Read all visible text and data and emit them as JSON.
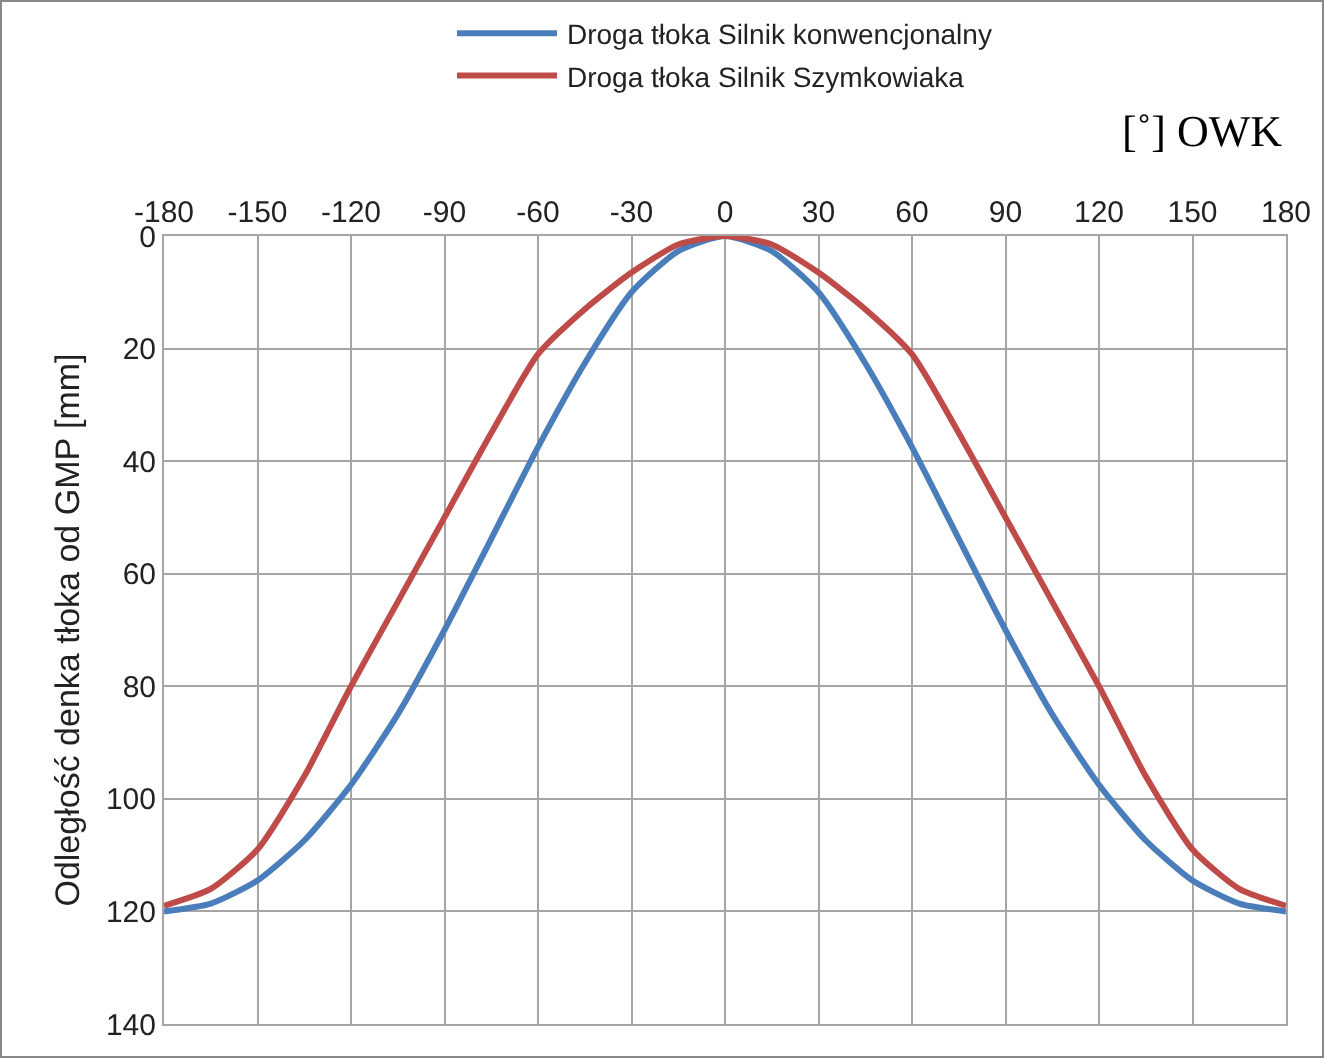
{
  "chart_data": {
    "type": "line",
    "xlabel": "[˚] OWK",
    "ylabel": "Odległość denka tłoka od GMP [mm]",
    "x": [
      -180,
      -165,
      -150,
      -135,
      -120,
      -105,
      -90,
      -75,
      -60,
      -45,
      -30,
      -15,
      0,
      15,
      30,
      45,
      60,
      75,
      90,
      105,
      120,
      135,
      150,
      165,
      180
    ],
    "series": [
      {
        "name": "Droga tłoka Silnik konwencjonalny",
        "color": "#4a7ebb",
        "values": [
          120,
          118.6,
          114.5,
          107.4,
          97.5,
          85,
          70,
          53.8,
          37.5,
          22.6,
          10,
          2.7,
          0,
          2.7,
          10,
          22.6,
          37.5,
          53.8,
          70,
          85,
          97.5,
          107.4,
          114.5,
          118.6,
          120
        ]
      },
      {
        "name": "Droga tłoka Silnik Szymkowiaka",
        "color": "#be4b48",
        "values": [
          119,
          116,
          109,
          96,
          80,
          65,
          50,
          35,
          21,
          13,
          6.5,
          1.5,
          0,
          1.5,
          6.5,
          13,
          21,
          35,
          50,
          65,
          80,
          96,
          109,
          116,
          119
        ]
      }
    ],
    "xlim": [
      -180,
      180
    ],
    "xticks": [
      -180,
      -150,
      -120,
      -90,
      -60,
      -30,
      0,
      30,
      60,
      90,
      120,
      150,
      180
    ],
    "ylim": [
      140,
      0
    ],
    "yticks": [
      0,
      20,
      40,
      60,
      80,
      100,
      120,
      140
    ],
    "grid": true,
    "legend": "top",
    "marker": "none",
    "line_style": "solid"
  }
}
